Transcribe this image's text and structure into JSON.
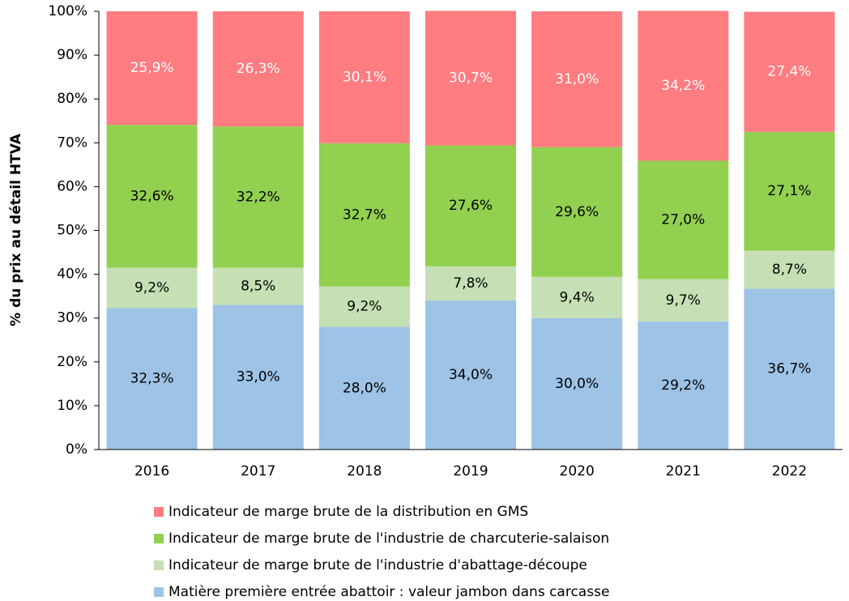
{
  "chart_data": {
    "type": "stacked_bar",
    "y_label": "% du prix au détail HTVA",
    "categories": [
      "2016",
      "2017",
      "2018",
      "2019",
      "2020",
      "2021",
      "2022"
    ],
    "series": [
      {
        "name": "Indicateur de marge brute de la distribution en GMS",
        "color": "#ff7c80",
        "label_color": "#ffffff",
        "values": [
          25.9,
          26.3,
          30.1,
          30.7,
          31.0,
          34.2,
          27.4
        ],
        "value_labels": [
          "25,9%",
          "26,3%",
          "30,1%",
          "30,7%",
          "31,0%",
          "34,2%",
          "27,4%"
        ]
      },
      {
        "name": "Indicateur de marge brute de l'industrie de charcuterie-salaison",
        "color": "#92d050",
        "label_color": "#000000",
        "values": [
          32.6,
          32.2,
          32.7,
          27.6,
          29.6,
          27.0,
          27.1
        ],
        "value_labels": [
          "32,6%",
          "32,2%",
          "32,7%",
          "27,6%",
          "29,6%",
          "27,0%",
          "27,1%"
        ]
      },
      {
        "name": "Indicateur de marge brute de l'industrie d'abattage-découpe",
        "color": "#c5e0b4",
        "label_color": "#000000",
        "values": [
          9.2,
          8.5,
          9.2,
          7.8,
          9.4,
          9.7,
          8.7
        ],
        "value_labels": [
          "9,2%",
          "8,5%",
          "9,2%",
          "7,8%",
          "9,4%",
          "9,7%",
          "8,7%"
        ]
      },
      {
        "name": "Matière première entrée abattoir : valeur jambon dans carcasse",
        "color": "#9dc3e6",
        "label_color": "#000000",
        "values": [
          32.3,
          33.0,
          28.0,
          34.0,
          30.0,
          29.2,
          36.7
        ],
        "value_labels": [
          "32,3%",
          "33,0%",
          "28,0%",
          "34,0%",
          "30,0%",
          "29,2%",
          "36,7%"
        ]
      }
    ],
    "ylim": [
      0,
      100
    ],
    "yticks": [
      {
        "value": 0,
        "label": "0%"
      },
      {
        "value": 10,
        "label": "10%"
      },
      {
        "value": 20,
        "label": "20%"
      },
      {
        "value": 30,
        "label": "30%"
      },
      {
        "value": 40,
        "label": "40%"
      },
      {
        "value": 50,
        "label": "50%"
      },
      {
        "value": 60,
        "label": "60%"
      },
      {
        "value": 70,
        "label": "70%"
      },
      {
        "value": 80,
        "label": "80%"
      },
      {
        "value": 90,
        "label": "90%"
      },
      {
        "value": 100,
        "label": "100%"
      }
    ],
    "legend": "bottom"
  }
}
